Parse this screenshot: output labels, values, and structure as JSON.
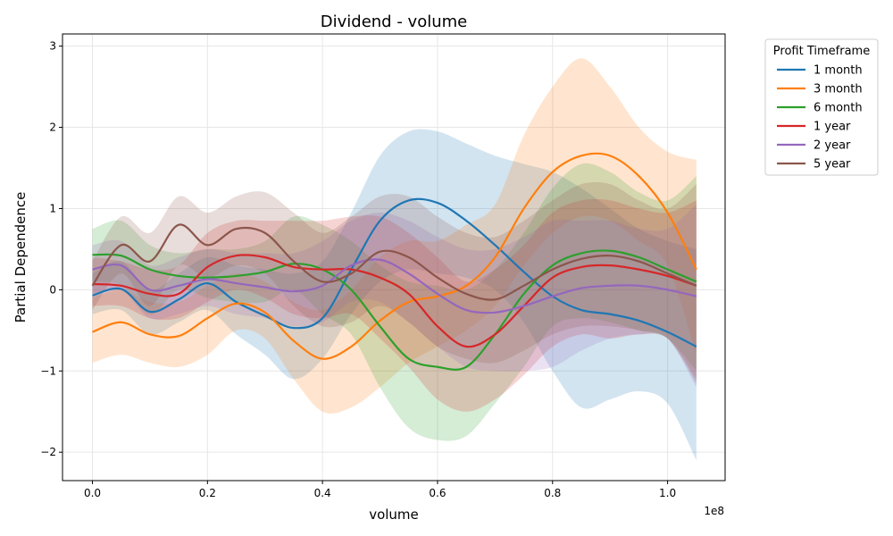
{
  "chart_data": {
    "type": "line",
    "title": "Dividend - volume",
    "xlabel": "volume",
    "ylabel": "Partial Dependence",
    "x_offset_text": "1e8",
    "xlim": [
      -0.052,
      1.1
    ],
    "ylim": [
      -2.35,
      3.15
    ],
    "x_ticks": [
      0.0,
      0.2,
      0.4,
      0.6,
      0.8,
      1.0
    ],
    "x_tick_labels": [
      "0.0",
      "0.2",
      "0.4",
      "0.6",
      "0.8",
      "1.0"
    ],
    "y_ticks": [
      -2,
      -1,
      0,
      1,
      2,
      3
    ],
    "y_tick_labels": [
      "−2",
      "−1",
      "0",
      "1",
      "2",
      "3"
    ],
    "grid": true,
    "legend": {
      "title": "Profit Timeframe",
      "placement": "outside-right"
    },
    "x": [
      0.0,
      0.05,
      0.1,
      0.15,
      0.2,
      0.25,
      0.3,
      0.35,
      0.4,
      0.45,
      0.5,
      0.55,
      0.6,
      0.65,
      0.7,
      0.75,
      0.8,
      0.85,
      0.9,
      0.95,
      1.0,
      1.05
    ],
    "series": [
      {
        "name": "1 month",
        "color": "#1f77b4",
        "values": [
          -0.07,
          0.01,
          -0.27,
          -0.12,
          0.08,
          -0.15,
          -0.32,
          -0.47,
          -0.35,
          0.25,
          0.85,
          1.1,
          1.07,
          0.85,
          0.55,
          0.22,
          -0.08,
          -0.25,
          -0.3,
          -0.38,
          -0.52,
          -0.7
        ],
        "lower": [
          -0.3,
          -0.25,
          -0.55,
          -0.4,
          -0.25,
          -0.55,
          -0.8,
          -1.1,
          -0.85,
          -0.3,
          0.1,
          0.25,
          0.2,
          0.15,
          0.0,
          -0.4,
          -1.0,
          -1.45,
          -1.35,
          -1.25,
          -1.4,
          -2.1
        ],
        "upper": [
          0.2,
          0.35,
          0.0,
          0.2,
          0.4,
          0.3,
          0.25,
          0.2,
          0.35,
          0.95,
          1.65,
          1.95,
          1.95,
          1.8,
          1.65,
          1.55,
          1.45,
          1.25,
          1.0,
          0.75,
          0.6,
          0.5
        ]
      },
      {
        "name": "3 month",
        "color": "#ff7f0e",
        "values": [
          -0.52,
          -0.4,
          -0.55,
          -0.57,
          -0.35,
          -0.17,
          -0.28,
          -0.63,
          -0.85,
          -0.7,
          -0.38,
          -0.15,
          -0.08,
          0.05,
          0.4,
          1.0,
          1.45,
          1.65,
          1.65,
          1.4,
          0.95,
          0.25
        ],
        "lower": [
          -0.9,
          -0.8,
          -0.9,
          -0.95,
          -0.8,
          -0.5,
          -0.6,
          -1.1,
          -1.5,
          -1.45,
          -1.2,
          -0.9,
          -0.7,
          -0.5,
          -0.2,
          0.3,
          0.7,
          0.9,
          0.85,
          0.6,
          0.3,
          -0.8
        ],
        "upper": [
          -0.1,
          0.0,
          -0.15,
          -0.15,
          0.05,
          0.2,
          0.1,
          -0.15,
          -0.25,
          0.0,
          0.4,
          0.6,
          0.6,
          0.8,
          1.05,
          1.9,
          2.5,
          2.85,
          2.5,
          2.0,
          1.7,
          1.6
        ]
      },
      {
        "name": "6 month",
        "color": "#2ca02c",
        "values": [
          0.43,
          0.42,
          0.25,
          0.17,
          0.15,
          0.17,
          0.22,
          0.32,
          0.25,
          0.0,
          -0.45,
          -0.85,
          -0.95,
          -0.95,
          -0.55,
          -0.05,
          0.3,
          0.45,
          0.48,
          0.4,
          0.25,
          0.1
        ],
        "lower": [
          0.1,
          0.05,
          -0.3,
          0.0,
          -0.1,
          -0.15,
          -0.15,
          0.0,
          -0.3,
          -0.55,
          -1.2,
          -1.7,
          -1.85,
          -1.8,
          -1.4,
          -0.95,
          -0.45,
          -0.35,
          -0.4,
          -0.5,
          -0.6,
          -1.0
        ],
        "upper": [
          0.75,
          0.85,
          0.55,
          0.45,
          0.5,
          0.5,
          0.6,
          0.9,
          0.8,
          0.6,
          0.3,
          0.1,
          0.05,
          0.0,
          0.25,
          0.7,
          1.25,
          1.55,
          1.45,
          1.2,
          1.1,
          1.4
        ]
      },
      {
        "name": "1 year",
        "color": "#d62728",
        "values": [
          0.07,
          0.05,
          -0.05,
          -0.05,
          0.28,
          0.42,
          0.4,
          0.28,
          0.25,
          0.25,
          0.15,
          -0.05,
          -0.45,
          -0.7,
          -0.55,
          -0.2,
          0.15,
          0.28,
          0.3,
          0.25,
          0.17,
          0.05
        ],
        "lower": [
          -0.2,
          -0.2,
          -0.35,
          -0.35,
          -0.15,
          0.0,
          -0.1,
          -0.3,
          -0.35,
          -0.3,
          -0.6,
          -0.95,
          -1.35,
          -1.5,
          -1.35,
          -1.05,
          -0.7,
          -0.55,
          -0.6,
          -0.55,
          -0.6,
          -1.1
        ],
        "upper": [
          0.4,
          0.35,
          0.25,
          0.3,
          0.7,
          0.85,
          0.85,
          0.85,
          0.85,
          0.9,
          0.9,
          0.7,
          0.4,
          0.1,
          0.25,
          0.55,
          0.95,
          1.1,
          1.1,
          1.0,
          0.95,
          1.1
        ]
      },
      {
        "name": "2 year",
        "color": "#9467bd",
        "values": [
          0.25,
          0.3,
          0.0,
          0.05,
          0.13,
          0.08,
          0.03,
          -0.02,
          0.05,
          0.3,
          0.37,
          0.2,
          -0.05,
          -0.25,
          -0.28,
          -0.2,
          -0.08,
          0.02,
          0.05,
          0.05,
          0.0,
          -0.08
        ],
        "lower": [
          -0.05,
          0.0,
          -0.35,
          -0.3,
          -0.2,
          -0.3,
          -0.35,
          -0.45,
          -0.4,
          -0.15,
          -0.15,
          -0.4,
          -0.7,
          -0.95,
          -1.0,
          -1.0,
          -0.95,
          -0.75,
          -0.6,
          -0.55,
          -0.6,
          -1.2
        ],
        "upper": [
          0.55,
          0.6,
          0.3,
          0.4,
          0.5,
          0.45,
          0.45,
          0.45,
          0.6,
          0.85,
          0.95,
          0.85,
          0.65,
          0.5,
          0.5,
          0.65,
          0.85,
          0.85,
          0.85,
          0.75,
          0.75,
          1.05
        ]
      },
      {
        "name": "5 year",
        "color": "#8c564b",
        "values": [
          0.05,
          0.55,
          0.35,
          0.8,
          0.55,
          0.75,
          0.7,
          0.35,
          0.1,
          0.2,
          0.47,
          0.4,
          0.15,
          -0.05,
          -0.12,
          0.05,
          0.25,
          0.38,
          0.42,
          0.35,
          0.2,
          0.05
        ],
        "lower": [
          -0.25,
          0.2,
          -0.2,
          0.3,
          0.15,
          0.3,
          0.2,
          -0.2,
          -0.45,
          -0.4,
          -0.2,
          -0.4,
          -0.7,
          -0.85,
          -0.9,
          -0.75,
          -0.55,
          -0.45,
          -0.45,
          -0.5,
          -0.6,
          -1.15
        ],
        "upper": [
          0.35,
          0.9,
          0.7,
          1.15,
          0.95,
          1.15,
          1.2,
          0.95,
          0.7,
          0.9,
          1.15,
          1.15,
          0.9,
          0.7,
          0.65,
          0.85,
          1.1,
          1.3,
          1.3,
          1.1,
          1.0,
          1.3
        ]
      }
    ]
  }
}
